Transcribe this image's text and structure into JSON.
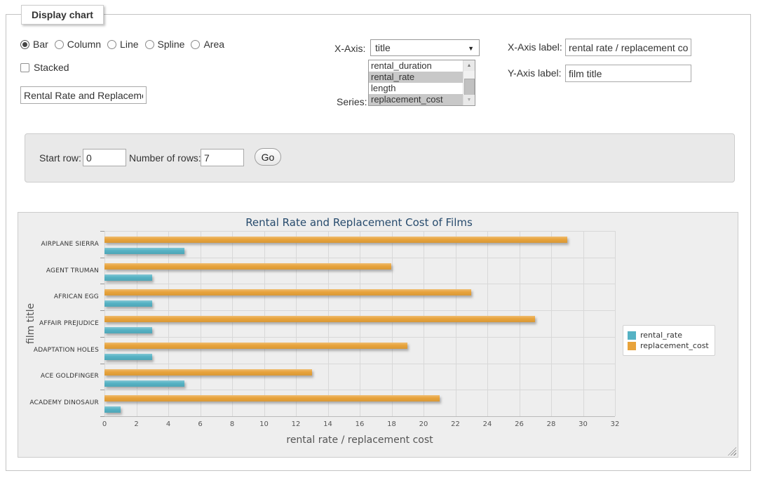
{
  "window": {
    "legend": "Display chart"
  },
  "controls": {
    "chart_types": [
      {
        "label": "Bar",
        "selected": true
      },
      {
        "label": "Column",
        "selected": false
      },
      {
        "label": "Line",
        "selected": false
      },
      {
        "label": "Spline",
        "selected": false
      },
      {
        "label": "Area",
        "selected": false
      }
    ],
    "stacked_label": "Stacked",
    "title_input_value": "Rental Rate and Replacement Cost of Films",
    "x_axis_label_text": "X-Axis:",
    "x_axis_select_value": "title",
    "series_label_text": "Series:",
    "series_options": [
      {
        "label": "rental_duration",
        "selected": false
      },
      {
        "label": "rental_rate",
        "selected": true
      },
      {
        "label": "length",
        "selected": false
      },
      {
        "label": "replacement_cost",
        "selected": true
      }
    ],
    "x_axis_label_field": {
      "label": "X-Axis label:",
      "value": "rental rate / replacement cost"
    },
    "y_axis_label_field": {
      "label": "Y-Axis label:",
      "value": "film title"
    }
  },
  "row_controls": {
    "start_row_label": "Start row:",
    "start_row_value": "0",
    "num_rows_label": "Number of rows:",
    "num_rows_value": "7",
    "go_label": "Go"
  },
  "chart_data": {
    "type": "bar",
    "title": "Rental Rate and Replacement Cost of Films",
    "categories": [
      "AIRPLANE SIERRA",
      "AGENT TRUMAN",
      "AFRICAN EGG",
      "AFFAIR PREJUDICE",
      "ADAPTATION HOLES",
      "ACE GOLDFINGER",
      "ACADEMY DINOSAUR"
    ],
    "series": [
      {
        "name": "rental_rate",
        "color": "#55b2c4",
        "values": [
          4.99,
          2.99,
          2.99,
          2.99,
          2.99,
          4.99,
          0.99
        ]
      },
      {
        "name": "replacement_cost",
        "color": "#e8a33b",
        "values": [
          28.99,
          17.99,
          22.99,
          26.99,
          18.99,
          12.99,
          20.99
        ]
      }
    ],
    "xlabel": "rental rate / replacement cost",
    "ylabel": "film title",
    "xlim": [
      0,
      32
    ],
    "x_ticks": [
      0,
      2,
      4,
      6,
      8,
      10,
      12,
      14,
      16,
      18,
      20,
      22,
      24,
      26,
      28,
      30,
      32
    ],
    "grid": true,
    "legend_position": "right"
  }
}
